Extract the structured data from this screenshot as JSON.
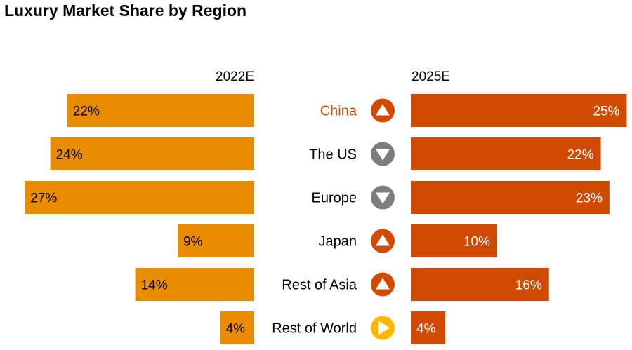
{
  "chart_data": {
    "type": "bar",
    "title": "Luxury Market Share by Region",
    "categories": [
      "China",
      "The US",
      "Europe",
      "Japan",
      "Rest of Asia",
      "Rest of World"
    ],
    "series": [
      {
        "name": "2022E",
        "values": [
          22,
          24,
          27,
          9,
          14,
          4
        ],
        "labels": [
          "22%",
          "24%",
          "27%",
          "9%",
          "14%",
          "4%"
        ],
        "color": "#EA8C00"
      },
      {
        "name": "2025E",
        "values": [
          25,
          22,
          23,
          10,
          16,
          4
        ],
        "labels": [
          "25%",
          "22%",
          "23%",
          "10%",
          "16%",
          "4%"
        ],
        "color": "#D04A02"
      }
    ],
    "trends": [
      "up",
      "down",
      "down",
      "up",
      "up",
      "flat"
    ],
    "trend_colors": {
      "up": "#D04A02",
      "down": "#7D7D7D",
      "flat": "#FFB600"
    },
    "highlight_category": "China",
    "highlight_color": "#D04A02",
    "xlabel": "",
    "ylabel": "",
    "unit": "%",
    "layout": "butterfly",
    "grid": false,
    "legend": "none"
  }
}
